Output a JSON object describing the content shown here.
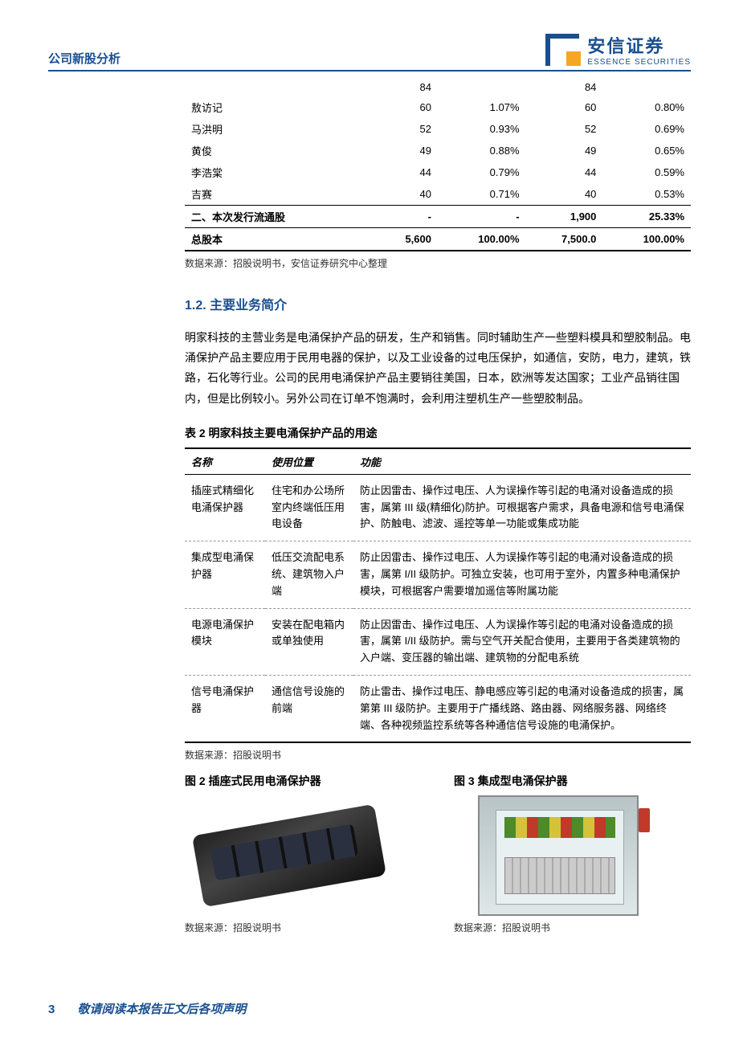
{
  "header": {
    "category": "公司新股分析",
    "logo_cn": "安信证券",
    "logo_en": "ESSENCE SECURITIES"
  },
  "share_table": {
    "rows": [
      {
        "name": "",
        "v1": "84",
        "p1": "",
        "v2": "84",
        "p2": ""
      },
      {
        "name": "敖访记",
        "v1": "60",
        "p1": "1.07%",
        "v2": "60",
        "p2": "0.80%"
      },
      {
        "name": "马洪明",
        "v1": "52",
        "p1": "0.93%",
        "v2": "52",
        "p2": "0.69%"
      },
      {
        "name": "黄俊",
        "v1": "49",
        "p1": "0.88%",
        "v2": "49",
        "p2": "0.65%"
      },
      {
        "name": "李浩棠",
        "v1": "44",
        "p1": "0.79%",
        "v2": "44",
        "p2": "0.59%"
      },
      {
        "name": "吉赛",
        "v1": "40",
        "p1": "0.71%",
        "v2": "40",
        "p2": "0.53%"
      }
    ],
    "issue_row": {
      "name": "二、本次发行流通股",
      "v1": "-",
      "p1": "-",
      "v2": "1,900",
      "p2": "25.33%"
    },
    "total_row": {
      "name": "总股本",
      "v1": "5,600",
      "p1": "100.00%",
      "v2": "7,500.0",
      "p2": "100.00%"
    },
    "source": "数据来源：招股说明书，安信证券研究中心整理"
  },
  "section": {
    "heading": "1.2. 主要业务简介",
    "body": "明家科技的主营业务是电涌保护产品的研发，生产和销售。同时辅助生产一些塑料模具和塑胶制品。电涌保护产品主要应用于民用电器的保护，以及工业设备的过电压保护，如通信，安防，电力，建筑，铁路，石化等行业。公司的民用电涌保护产品主要销往美国，日本，欧洲等发达国家；工业产品销往国内，但是比例较小。另外公司在订单不饱满时，会利用注塑机生产一些塑胶制品。"
  },
  "prod_table": {
    "caption": "表 2 明家科技主要电涌保护产品的用途",
    "headers": [
      "名称",
      "使用位置",
      "功能"
    ],
    "rows": [
      {
        "name": "插座式精细化电涌保护器",
        "loc": "住宅和办公场所室内终端低压用电设备",
        "func": "防止因雷击、操作过电压、人为误操作等引起的电涌对设备造成的损害，属第 III 级(精细化)防护。可根据客户需求，具备电源和信号电涌保护、防触电、滤波、遥控等单一功能或集成功能"
      },
      {
        "name": "集成型电涌保护器",
        "loc": "低压交流配电系统、建筑物入户端",
        "func": "防止因雷击、操作过电压、人为误操作等引起的电涌对设备造成的损害，属第 I/II 级防护。可独立安装，也可用于室外，内置多种电涌保护模块，可根据客户需要增加遥信等附属功能"
      },
      {
        "name": "电源电涌保护模块",
        "loc": "安装在配电箱内或单独使用",
        "func": "防止因雷击、操作过电压、人为误操作等引起的电涌对设备造成的损害，属第 I/II 级防护。需与空气开关配合使用，主要用于各类建筑物的入户端、变压器的输出端、建筑物的分配电系统"
      },
      {
        "name": "信号电涌保护器",
        "loc": "通信信号设施的前端",
        "func": "防止雷击、操作过电压、静电感应等引起的电涌对设备造成的损害，属第第 III 级防护。主要用于广播线路、路由器、网络服务器、网络终端、各种视频监控系统等各种通信信号设施的电涌保护。"
      }
    ],
    "source": "数据来源：招股说明书"
  },
  "figures": {
    "fig2": {
      "caption": "图 2 插座式民用电涌保护器",
      "source": "数据来源：招股说明书"
    },
    "fig3": {
      "caption": "图 3 集成型电涌保护器",
      "source": "数据来源：招股说明书"
    }
  },
  "footer": {
    "page": "3",
    "note": "敬请阅读本报告正文后各项声明"
  }
}
